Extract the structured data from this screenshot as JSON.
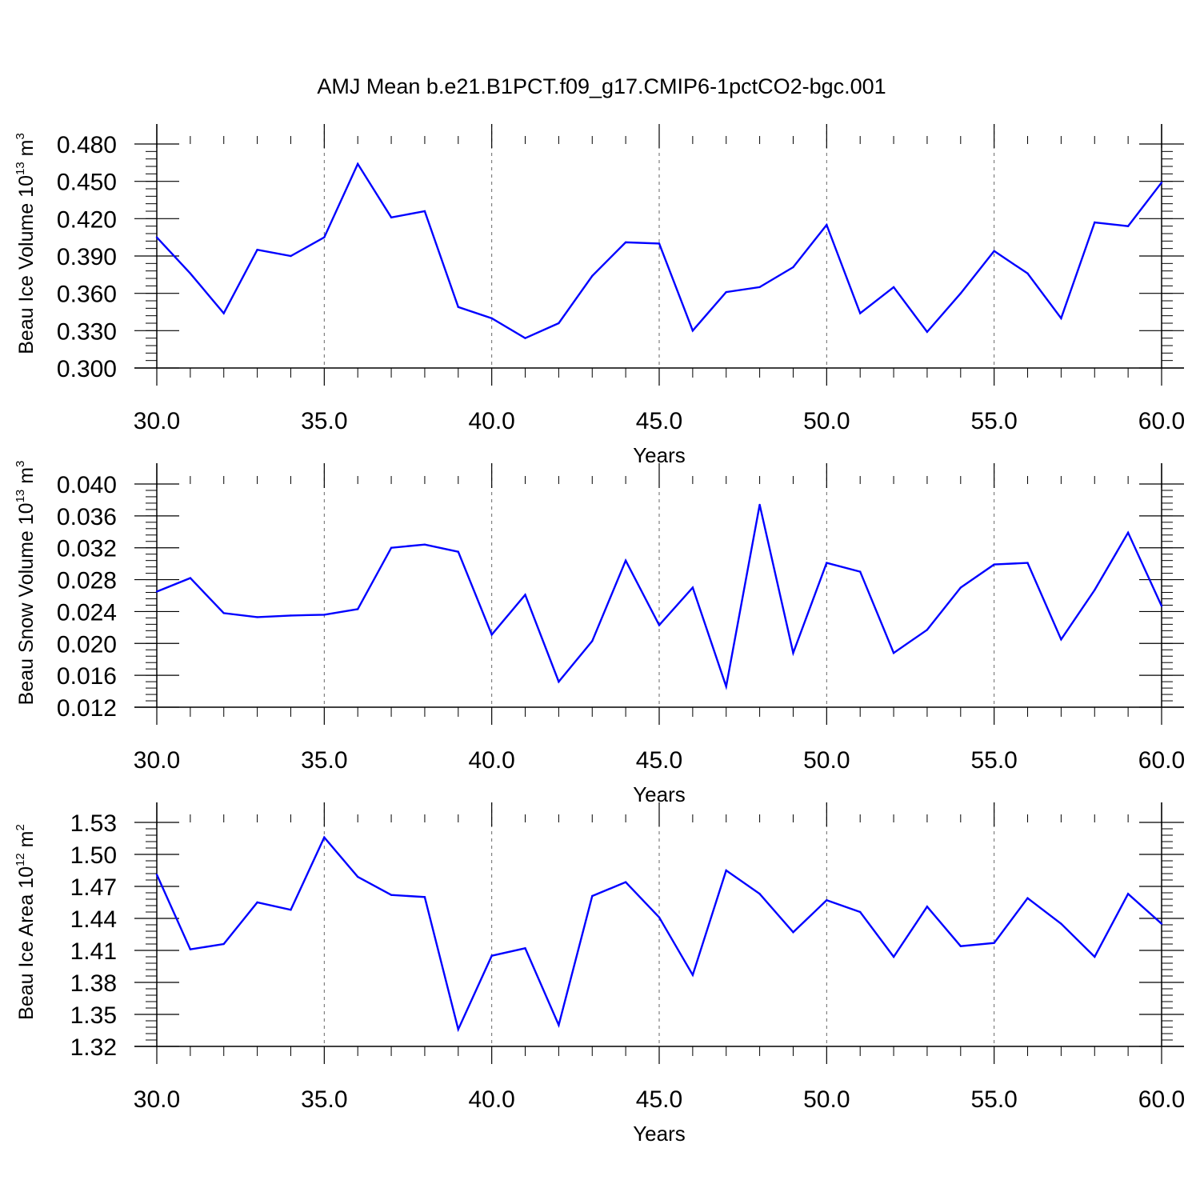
{
  "figure": {
    "title": "AMJ Mean b.e21.B1PCT.f09_g17.CMIP6-1pctCO2-bgc.001"
  },
  "chart_data": [
    {
      "type": "line",
      "title": "",
      "xlabel": "Years",
      "ylabel": {
        "prefix": "Beau Ice Volume 10",
        "exponent": "13",
        "unit": " m",
        "unit_exponent": "3"
      },
      "xlim": [
        30,
        60
      ],
      "ylim": [
        0.3,
        0.48
      ],
      "x_ticks": [
        30,
        35,
        40,
        45,
        50,
        55,
        60
      ],
      "x_tick_labels": [
        "30.0",
        "35.0",
        "40.0",
        "45.0",
        "50.0",
        "55.0",
        "60.0"
      ],
      "y_ticks": [
        0.3,
        0.33,
        0.36,
        0.39,
        0.42,
        0.45,
        0.48
      ],
      "y_tick_labels": [
        "0.300",
        "0.330",
        "0.360",
        "0.390",
        "0.420",
        "0.450",
        "0.480"
      ],
      "y_minor_step": 0.006,
      "grid": "vertical dashed at major x ticks",
      "series": [
        {
          "color": "#0000ff",
          "x": [
            30,
            31,
            32,
            33,
            34,
            35,
            36,
            37,
            38,
            39,
            40,
            41,
            42,
            43,
            44,
            45,
            46,
            47,
            48,
            49,
            50,
            51,
            52,
            53,
            54,
            55,
            56,
            57,
            58,
            59,
            60
          ],
          "values": [
            0.405,
            0.376,
            0.344,
            0.395,
            0.39,
            0.405,
            0.464,
            0.421,
            0.426,
            0.349,
            0.34,
            0.324,
            0.336,
            0.374,
            0.401,
            0.4,
            0.33,
            0.361,
            0.365,
            0.381,
            0.415,
            0.344,
            0.365,
            0.329,
            0.36,
            0.394,
            0.376,
            0.34,
            0.417,
            0.414,
            0.449
          ]
        }
      ]
    },
    {
      "type": "line",
      "title": "",
      "xlabel": "Years",
      "ylabel": {
        "prefix": "Beau Snow Volume 10",
        "exponent": "13",
        "unit": " m",
        "unit_exponent": "3"
      },
      "xlim": [
        30,
        60
      ],
      "ylim": [
        0.012,
        0.04
      ],
      "x_ticks": [
        30,
        35,
        40,
        45,
        50,
        55,
        60
      ],
      "x_tick_labels": [
        "30.0",
        "35.0",
        "40.0",
        "45.0",
        "50.0",
        "55.0",
        "60.0"
      ],
      "y_ticks": [
        0.012,
        0.016,
        0.02,
        0.024,
        0.028,
        0.032,
        0.036,
        0.04
      ],
      "y_tick_labels": [
        "0.012",
        "0.016",
        "0.020",
        "0.024",
        "0.028",
        "0.032",
        "0.036",
        "0.040"
      ],
      "y_minor_step": 0.0008,
      "grid": "vertical dashed at major x ticks",
      "series": [
        {
          "color": "#0000ff",
          "x": [
            30,
            31,
            32,
            33,
            34,
            35,
            36,
            37,
            38,
            39,
            40,
            41,
            42,
            43,
            44,
            45,
            46,
            47,
            48,
            49,
            50,
            51,
            52,
            53,
            54,
            55,
            56,
            57,
            58,
            59,
            60
          ],
          "values": [
            0.0265,
            0.0282,
            0.0238,
            0.0233,
            0.0235,
            0.0236,
            0.0243,
            0.032,
            0.0324,
            0.0315,
            0.0211,
            0.0261,
            0.0152,
            0.0203,
            0.0304,
            0.0223,
            0.027,
            0.0146,
            0.0374,
            0.0188,
            0.0301,
            0.029,
            0.0188,
            0.0217,
            0.027,
            0.0299,
            0.0301,
            0.0205,
            0.0267,
            0.0339,
            0.0247
          ]
        }
      ]
    },
    {
      "type": "line",
      "title": "",
      "xlabel": "Years",
      "ylabel": {
        "prefix": "Beau Ice Area 10",
        "exponent": "12",
        "unit": " m",
        "unit_exponent": "2"
      },
      "xlim": [
        30,
        60
      ],
      "ylim": [
        1.32,
        1.53
      ],
      "x_ticks": [
        30,
        35,
        40,
        45,
        50,
        55,
        60
      ],
      "x_tick_labels": [
        "30.0",
        "35.0",
        "40.0",
        "45.0",
        "50.0",
        "55.0",
        "60.0"
      ],
      "y_ticks": [
        1.32,
        1.35,
        1.38,
        1.41,
        1.44,
        1.47,
        1.5,
        1.53
      ],
      "y_tick_labels": [
        "1.32",
        "1.35",
        "1.38",
        "1.41",
        "1.44",
        "1.47",
        "1.50",
        "1.53"
      ],
      "y_minor_step": 0.006,
      "grid": "vertical dashed at major x ticks",
      "series": [
        {
          "color": "#0000ff",
          "x": [
            30,
            31,
            32,
            33,
            34,
            35,
            36,
            37,
            38,
            39,
            40,
            41,
            42,
            43,
            44,
            45,
            46,
            47,
            48,
            49,
            50,
            51,
            52,
            53,
            54,
            55,
            56,
            57,
            58,
            59,
            60
          ],
          "values": [
            1.481,
            1.411,
            1.416,
            1.455,
            1.448,
            1.516,
            1.479,
            1.462,
            1.46,
            1.336,
            1.405,
            1.412,
            1.34,
            1.461,
            1.474,
            1.441,
            1.387,
            1.485,
            1.463,
            1.427,
            1.457,
            1.446,
            1.404,
            1.451,
            1.414,
            1.417,
            1.459,
            1.435,
            1.404,
            1.463,
            1.435
          ]
        }
      ]
    }
  ]
}
